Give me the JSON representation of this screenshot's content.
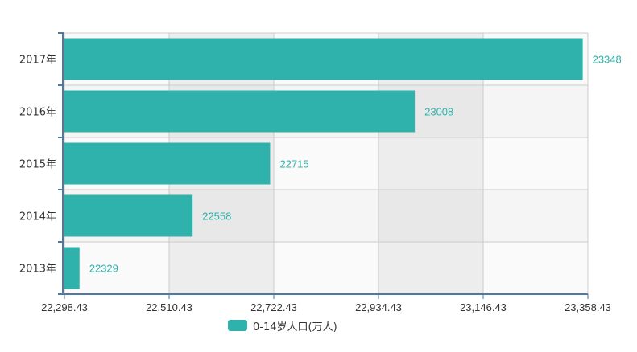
{
  "chart_data": {
    "type": "bar",
    "orientation": "horizontal",
    "categories": [
      "2013年",
      "2014年",
      "2015年",
      "2016年",
      "2017年"
    ],
    "series": [
      {
        "name": "0-14岁人口(万人)",
        "values": [
          22329,
          22558,
          22715,
          23008,
          23348
        ],
        "color": "#2fb2ab"
      }
    ],
    "xlim": [
      22298.43,
      23358.43
    ],
    "xticks": [
      "22,298.43",
      "22,510.43",
      "22,722.43",
      "22,934.43",
      "23,146.43",
      "23,358.43"
    ],
    "data_labels": [
      "22329",
      "22558",
      "22715",
      "23008",
      "23348"
    ],
    "grid": true,
    "legend_position": "bottom-center"
  },
  "legend": {
    "label": "0-14岁人口(万人)",
    "color": "#2fb2ab"
  },
  "colors": {
    "bar": "#2fb2ab",
    "label": "#2fb2ab",
    "axis": "#4a7aa5",
    "band_light": "#fafafa",
    "band_dark": "#ededed",
    "grid": "#cccccc",
    "tick_text": "#333333"
  }
}
